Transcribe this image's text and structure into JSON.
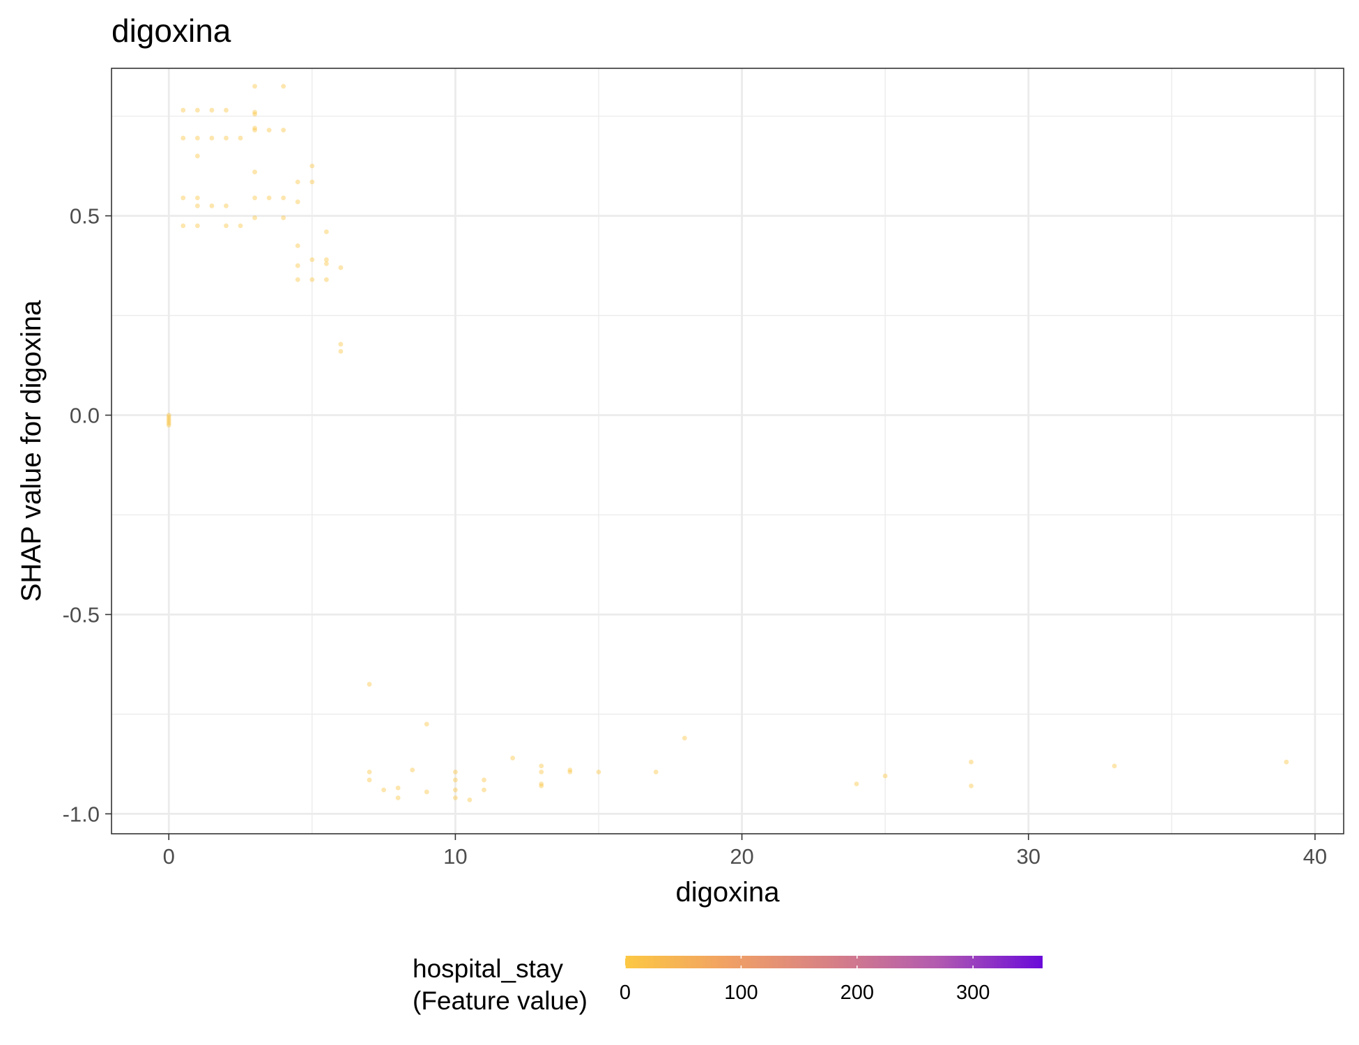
{
  "chart_data": {
    "type": "scatter",
    "title": "digoxina",
    "xlabel": "digoxina",
    "ylabel": "SHAP value for digoxina",
    "xlim": [
      -2,
      41
    ],
    "ylim": [
      -1.05,
      0.87
    ],
    "x_ticks": [
      0,
      10,
      20,
      30,
      40
    ],
    "x_tick_labels": [
      "0",
      "10",
      "20",
      "30",
      "40"
    ],
    "y_ticks": [
      -1.0,
      -0.5,
      0.0,
      0.5
    ],
    "y_tick_labels": [
      "-1.0",
      "-0.5",
      "0.0",
      "0.5"
    ],
    "grid": true,
    "legend": {
      "title_lines": [
        "hospital_stay",
        "(Feature value)"
      ],
      "position": "bottom",
      "range": [
        0,
        360
      ],
      "ticks": [
        0,
        100,
        200,
        300
      ],
      "tick_labels": [
        "0",
        "100",
        "200",
        "300"
      ],
      "colors": [
        "#fcc843",
        "#f0a065",
        "#d67f87",
        "#b25ab0",
        "#6a0ad9"
      ]
    },
    "point_color": "#fbc33f",
    "points": [
      [
        0,
        0.0
      ],
      [
        0,
        -0.005
      ],
      [
        0,
        -0.01
      ],
      [
        0,
        -0.015
      ],
      [
        0,
        -0.02
      ],
      [
        0,
        -0.025
      ],
      [
        0.5,
        0.765
      ],
      [
        1,
        0.765
      ],
      [
        1.5,
        0.765
      ],
      [
        2,
        0.765
      ],
      [
        0.5,
        0.695
      ],
      [
        1,
        0.695
      ],
      [
        1.5,
        0.695
      ],
      [
        2,
        0.695
      ],
      [
        2.5,
        0.695
      ],
      [
        1,
        0.65
      ],
      [
        0.5,
        0.545
      ],
      [
        1,
        0.545
      ],
      [
        1,
        0.525
      ],
      [
        1.5,
        0.525
      ],
      [
        2,
        0.525
      ],
      [
        0.5,
        0.475
      ],
      [
        1,
        0.475
      ],
      [
        2,
        0.475
      ],
      [
        2.5,
        0.475
      ],
      [
        3,
        0.825
      ],
      [
        3,
        0.76
      ],
      [
        3,
        0.755
      ],
      [
        3,
        0.72
      ],
      [
        3,
        0.715
      ],
      [
        3.5,
        0.715
      ],
      [
        4,
        0.715
      ],
      [
        4,
        0.825
      ],
      [
        3,
        0.61
      ],
      [
        3,
        0.545
      ],
      [
        3.5,
        0.545
      ],
      [
        4,
        0.545
      ],
      [
        3,
        0.495
      ],
      [
        4,
        0.495
      ],
      [
        4.5,
        0.585
      ],
      [
        5,
        0.585
      ],
      [
        5,
        0.625
      ],
      [
        4.5,
        0.535
      ],
      [
        4.5,
        0.425
      ],
      [
        5.5,
        0.46
      ],
      [
        4.5,
        0.375
      ],
      [
        5,
        0.39
      ],
      [
        5.5,
        0.39
      ],
      [
        5.5,
        0.38
      ],
      [
        4.5,
        0.34
      ],
      [
        5,
        0.34
      ],
      [
        5.5,
        0.34
      ],
      [
        6,
        0.37
      ],
      [
        6,
        0.178
      ],
      [
        6,
        0.16
      ],
      [
        7,
        -0.675
      ],
      [
        7,
        -0.895
      ],
      [
        7,
        -0.915
      ],
      [
        7.5,
        -0.94
      ],
      [
        8,
        -0.935
      ],
      [
        8,
        -0.96
      ],
      [
        8.5,
        -0.89
      ],
      [
        9,
        -0.775
      ],
      [
        9,
        -0.945
      ],
      [
        10,
        -0.895
      ],
      [
        10,
        -0.915
      ],
      [
        10,
        -0.94
      ],
      [
        10,
        -0.96
      ],
      [
        10.5,
        -0.965
      ],
      [
        11,
        -0.915
      ],
      [
        11,
        -0.94
      ],
      [
        12,
        -0.86
      ],
      [
        13,
        -0.88
      ],
      [
        13,
        -0.895
      ],
      [
        13,
        -0.925
      ],
      [
        13,
        -0.93
      ],
      [
        14,
        -0.89
      ],
      [
        14,
        -0.895
      ],
      [
        15,
        -0.895
      ],
      [
        17,
        -0.895
      ],
      [
        18,
        -0.81
      ],
      [
        24,
        -0.925
      ],
      [
        25,
        -0.905
      ],
      [
        28,
        -0.87
      ],
      [
        28,
        -0.93
      ],
      [
        33,
        -0.88
      ],
      [
        39,
        -0.87
      ]
    ]
  }
}
